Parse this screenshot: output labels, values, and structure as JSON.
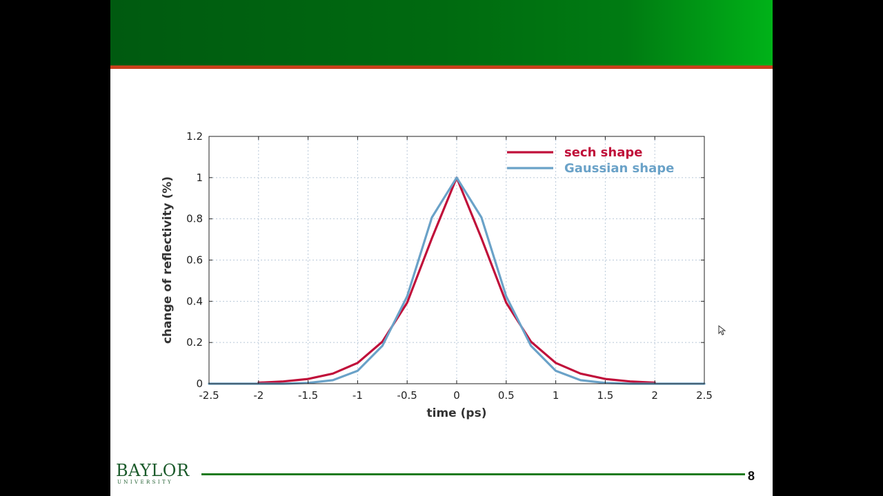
{
  "slide": {
    "page_number": "8",
    "logo": {
      "name": "BAYLOR",
      "sub": "UNIVERSITY"
    }
  },
  "colors": {
    "banner_green": "#006a10",
    "banner_rule": "#c8401a",
    "sech": "#c0103a",
    "gaussian": "#6aa2c8"
  },
  "chart_data": {
    "type": "line",
    "xlabel": "time (ps)",
    "ylabel": "change of reflectivity (%)",
    "xlim": [
      -2.5,
      2.5
    ],
    "ylim": [
      0,
      1.2
    ],
    "x_ticks": [
      "-2.5",
      "-2",
      "-1.5",
      "-1",
      "-0.5",
      "0",
      "0.5",
      "1",
      "1.5",
      "2",
      "2.5"
    ],
    "y_ticks": [
      "0",
      "0.2",
      "0.4",
      "0.6",
      "0.8",
      "1",
      "1.2"
    ],
    "grid": true,
    "legend_position": "top-right",
    "series": [
      {
        "name": "sech shape",
        "color": "#c0103a",
        "x": [
          -2.0,
          -1.75,
          -1.5,
          -1.25,
          -1.0,
          -0.75,
          -0.5,
          -0.25,
          0.0,
          0.25,
          0.5,
          0.75,
          1.0,
          1.25,
          1.5,
          1.75,
          2.0
        ],
        "y": [
          0.005,
          0.011,
          0.023,
          0.049,
          0.101,
          0.204,
          0.393,
          0.706,
          1.0,
          0.706,
          0.393,
          0.204,
          0.101,
          0.049,
          0.023,
          0.011,
          0.005
        ]
      },
      {
        "name": "Gaussian shape",
        "color": "#6aa2c8",
        "x": [
          -2.5,
          -2.0,
          -1.75,
          -1.5,
          -1.25,
          -1.0,
          -0.75,
          -0.5,
          -0.25,
          0.0,
          0.25,
          0.5,
          0.75,
          1.0,
          1.25,
          1.5,
          1.75,
          2.0,
          2.5
        ],
        "y": [
          0.0,
          0.0,
          0.0,
          0.004,
          0.017,
          0.063,
          0.184,
          0.424,
          0.807,
          1.0,
          0.807,
          0.424,
          0.184,
          0.063,
          0.017,
          0.004,
          0.0,
          0.0,
          0.0
        ]
      }
    ]
  }
}
